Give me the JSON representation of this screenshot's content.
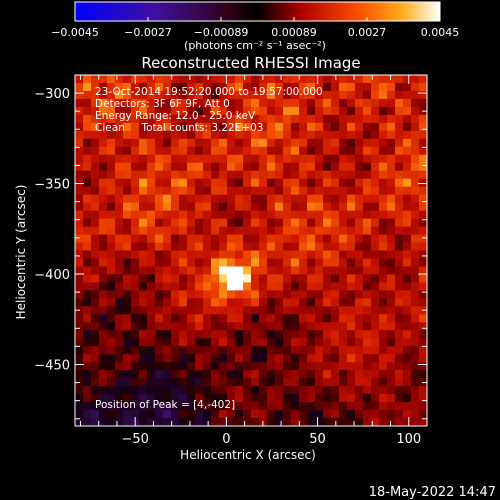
{
  "colorbar": {
    "ticks": [
      "-0.0045",
      "-0.0027",
      "-0.00089",
      "0.00089",
      "0.0027",
      "0.0045"
    ],
    "unit_label": "(photons cm⁻² s⁻¹ asec⁻²)",
    "range": [
      -0.0045,
      0.0045
    ]
  },
  "info_lines": [
    "23-Oct-2014 19:52:20.000 to 19:57:00.000",
    "Detectors: 3F 6F 9F, Att 0",
    "Energy Range: 12.0 - 25.0 keV",
    "Clean     Total counts: 3.22E+03"
  ],
  "peak_label": "Position of Peak = [4,-402]",
  "date_stamp": "18-May-2022 14:47",
  "chart_data": {
    "type": "heatmap",
    "title": "Reconstructed RHESSI Image",
    "xlabel": "Heliocentric X (arcsec)",
    "ylabel": "Heliocentric Y (arcsec)",
    "xlim": [
      -83,
      110
    ],
    "ylim": [
      -484,
      -290
    ],
    "xticks": [
      -50,
      0,
      50,
      100
    ],
    "xtick_labels": [
      "−50",
      "0",
      "50",
      "100"
    ],
    "yticks": [
      -300,
      -350,
      -400,
      -450
    ],
    "ytick_labels": [
      "−300",
      "−350",
      "−400",
      "−450"
    ],
    "peak": {
      "x": 4,
      "y": -402
    },
    "colormap": "rhessi-red-temperature"
  }
}
